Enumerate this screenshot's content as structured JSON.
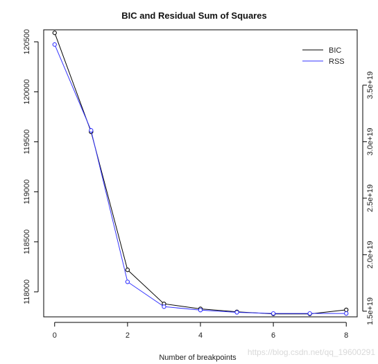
{
  "chart_data": {
    "type": "line",
    "title": "BIC and Residual Sum of Squares",
    "xlabel": "Number of breakpoints",
    "ylabel": "",
    "y2label": "",
    "x": [
      0,
      1,
      2,
      3,
      4,
      5,
      6,
      7,
      8
    ],
    "xticks": [
      "0",
      "2",
      "4",
      "6",
      "8"
    ],
    "xtick_values": [
      0,
      2,
      4,
      6,
      8
    ],
    "xlim": [
      -0.3,
      8.3
    ],
    "ylim": [
      117750,
      120620
    ],
    "y2lim": [
      1.45e+19,
      3.99e+19
    ],
    "yticks": [
      "118000",
      "118500",
      "119000",
      "119500",
      "120000",
      "120500"
    ],
    "ytick_values": [
      118000,
      118500,
      119000,
      119500,
      120000,
      120500
    ],
    "y2ticks": [
      "1.5e+19",
      "2.0e+19",
      "2.5e+19",
      "3.0e+19",
      "3.5e+19"
    ],
    "y2tick_values": [
      1.5e+19,
      2e+19,
      2.5e+19,
      3e+19,
      3.5e+19
    ],
    "grid": false,
    "legend_position": "top-right",
    "series": [
      {
        "name": "BIC",
        "axis": "left",
        "color": "#000000",
        "values": [
          120590,
          119600,
          118220,
          117880,
          117830,
          117800,
          117780,
          117780,
          117820
        ]
      },
      {
        "name": "RSS",
        "axis": "right",
        "color": "#3333ff",
        "values": [
          3.86e+19,
          3.1e+19,
          1.76e+19,
          1.54e+19,
          1.51e+19,
          1.49e+19,
          1.48e+19,
          1.48e+19,
          1.48e+19
        ]
      }
    ]
  },
  "watermark": "https://blog.csdn.net/qq_19600291"
}
